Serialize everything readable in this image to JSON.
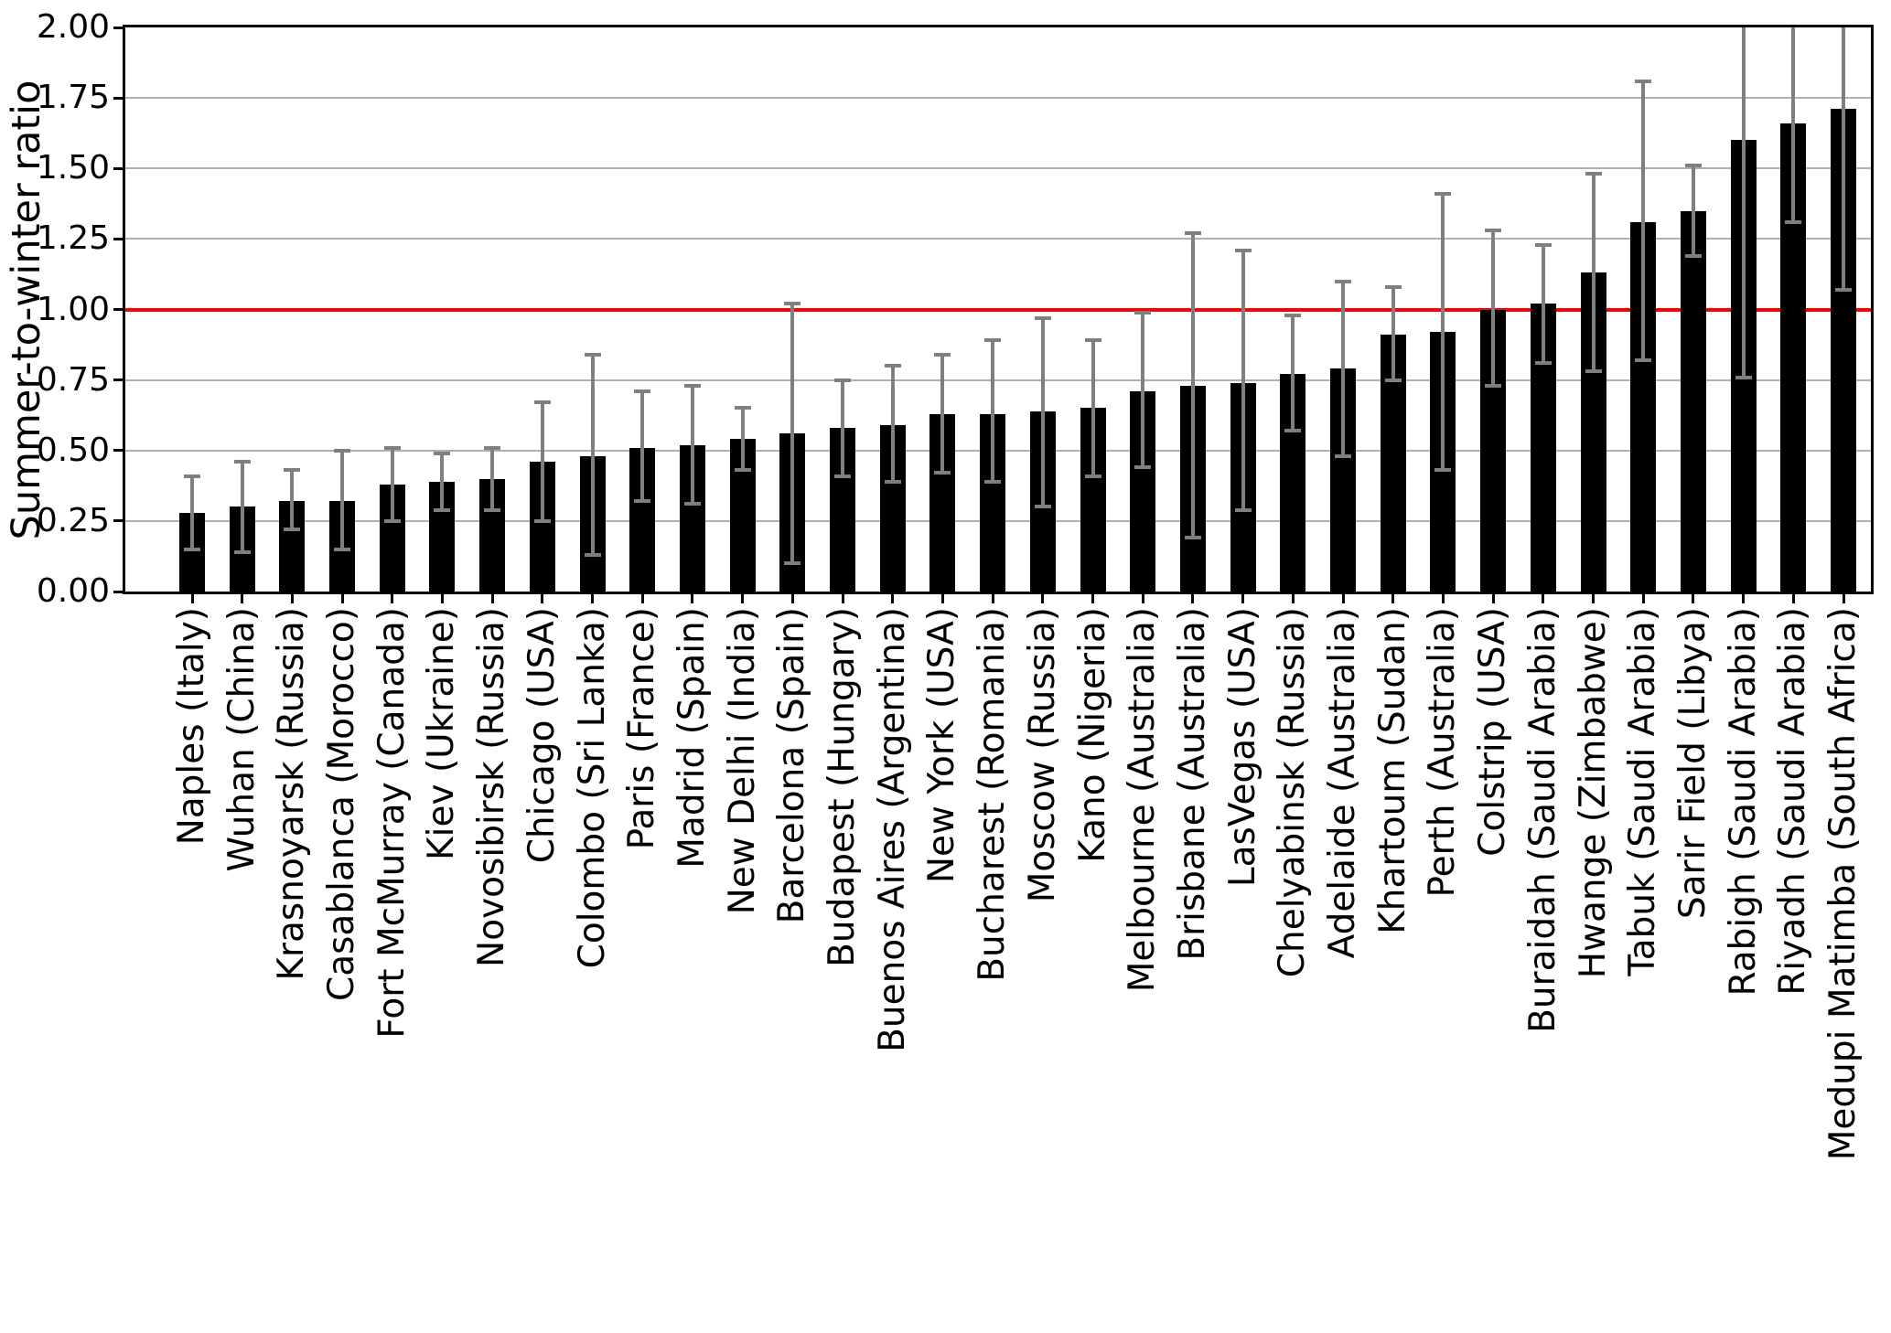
{
  "chart_data": {
    "type": "bar",
    "title": "",
    "xlabel": "",
    "ylabel": "Summer-to-winter ratio",
    "ylim": [
      0,
      2
    ],
    "yticks": [
      "0.00",
      "0.25",
      "0.50",
      "0.75",
      "1.00",
      "1.25",
      "1.50",
      "1.75",
      "2.00"
    ],
    "grid": "horizontal",
    "legend_position": "none",
    "reference_line": {
      "y": 1.0,
      "color": "#ff0000",
      "style": "solid"
    },
    "colors": {
      "bar": "#000000",
      "error_bar": "#7f7f7f",
      "reference_line": "#ff0000",
      "gridline": "#b0b0b0",
      "axis": "#000000",
      "background": "#ffffff"
    },
    "bars": [
      {
        "label": "Naples (Italy)",
        "value": 0.28,
        "err_lo": 0.15,
        "err_hi": 0.41,
        "err_hi_clipped": false
      },
      {
        "label": "Wuhan (China)",
        "value": 0.3,
        "err_lo": 0.14,
        "err_hi": 0.46,
        "err_hi_clipped": false
      },
      {
        "label": "Krasnoyarsk (Russia)",
        "value": 0.32,
        "err_lo": 0.22,
        "err_hi": 0.43,
        "err_hi_clipped": false
      },
      {
        "label": "Casablanca (Morocco)",
        "value": 0.32,
        "err_lo": 0.15,
        "err_hi": 0.5,
        "err_hi_clipped": false
      },
      {
        "label": "Fort McMurray (Canada)",
        "value": 0.38,
        "err_lo": 0.25,
        "err_hi": 0.51,
        "err_hi_clipped": false
      },
      {
        "label": "Kiev (Ukraine)",
        "value": 0.39,
        "err_lo": 0.29,
        "err_hi": 0.49,
        "err_hi_clipped": false
      },
      {
        "label": "Novosibirsk (Russia)",
        "value": 0.4,
        "err_lo": 0.29,
        "err_hi": 0.51,
        "err_hi_clipped": false
      },
      {
        "label": "Chicago (USA)",
        "value": 0.46,
        "err_lo": 0.25,
        "err_hi": 0.67,
        "err_hi_clipped": false
      },
      {
        "label": "Colombo (Sri Lanka)",
        "value": 0.48,
        "err_lo": 0.13,
        "err_hi": 0.84,
        "err_hi_clipped": false
      },
      {
        "label": "Paris (France)",
        "value": 0.51,
        "err_lo": 0.32,
        "err_hi": 0.71,
        "err_hi_clipped": false
      },
      {
        "label": "Madrid (Spain)",
        "value": 0.52,
        "err_lo": 0.31,
        "err_hi": 0.73,
        "err_hi_clipped": false
      },
      {
        "label": "New Delhi (India)",
        "value": 0.54,
        "err_lo": 0.43,
        "err_hi": 0.65,
        "err_hi_clipped": false
      },
      {
        "label": "Barcelona (Spain)",
        "value": 0.56,
        "err_lo": 0.1,
        "err_hi": 1.02,
        "err_hi_clipped": false
      },
      {
        "label": "Budapest (Hungary)",
        "value": 0.58,
        "err_lo": 0.41,
        "err_hi": 0.75,
        "err_hi_clipped": false
      },
      {
        "label": "Buenos Aires (Argentina)",
        "value": 0.59,
        "err_lo": 0.39,
        "err_hi": 0.8,
        "err_hi_clipped": false
      },
      {
        "label": "New York (USA)",
        "value": 0.63,
        "err_lo": 0.42,
        "err_hi": 0.84,
        "err_hi_clipped": false
      },
      {
        "label": "Bucharest (Romania)",
        "value": 0.63,
        "err_lo": 0.39,
        "err_hi": 0.89,
        "err_hi_clipped": false
      },
      {
        "label": "Moscow (Russia)",
        "value": 0.64,
        "err_lo": 0.3,
        "err_hi": 0.97,
        "err_hi_clipped": false
      },
      {
        "label": "Kano (Nigeria)",
        "value": 0.65,
        "err_lo": 0.41,
        "err_hi": 0.89,
        "err_hi_clipped": false
      },
      {
        "label": "Melbourne (Australia)",
        "value": 0.71,
        "err_lo": 0.44,
        "err_hi": 0.99,
        "err_hi_clipped": false
      },
      {
        "label": "Brisbane (Australia)",
        "value": 0.73,
        "err_lo": 0.19,
        "err_hi": 1.27,
        "err_hi_clipped": false
      },
      {
        "label": "LasVegas (USA)",
        "value": 0.74,
        "err_lo": 0.29,
        "err_hi": 1.21,
        "err_hi_clipped": false
      },
      {
        "label": "Chelyabinsk (Russia)",
        "value": 0.77,
        "err_lo": 0.57,
        "err_hi": 0.98,
        "err_hi_clipped": false
      },
      {
        "label": "Adelaide (Australia)",
        "value": 0.79,
        "err_lo": 0.48,
        "err_hi": 1.1,
        "err_hi_clipped": false
      },
      {
        "label": "Khartoum (Sudan)",
        "value": 0.91,
        "err_lo": 0.75,
        "err_hi": 1.08,
        "err_hi_clipped": false
      },
      {
        "label": "Perth (Australia)",
        "value": 0.92,
        "err_lo": 0.43,
        "err_hi": 1.41,
        "err_hi_clipped": false
      },
      {
        "label": "Colstrip (USA)",
        "value": 1.0,
        "err_lo": 0.73,
        "err_hi": 1.28,
        "err_hi_clipped": false
      },
      {
        "label": "Buraidah (Saudi Arabia)",
        "value": 1.02,
        "err_lo": 0.81,
        "err_hi": 1.23,
        "err_hi_clipped": false
      },
      {
        "label": "Hwange (Zimbabwe)",
        "value": 1.13,
        "err_lo": 0.78,
        "err_hi": 1.48,
        "err_hi_clipped": false
      },
      {
        "label": "Tabuk (Saudi Arabia)",
        "value": 1.31,
        "err_lo": 0.82,
        "err_hi": 1.81,
        "err_hi_clipped": false
      },
      {
        "label": "Sarir Field (Libya)",
        "value": 1.35,
        "err_lo": 1.19,
        "err_hi": 1.51,
        "err_hi_clipped": false
      },
      {
        "label": "Rabigh (Saudi Arabia)",
        "value": 1.6,
        "err_lo": 0.76,
        "err_hi": 2.0,
        "err_hi_clipped": true
      },
      {
        "label": "Riyadh (Saudi Arabia)",
        "value": 1.66,
        "err_lo": 1.31,
        "err_hi": 2.0,
        "err_hi_clipped": true
      },
      {
        "label": "Medupi Matimba (South Africa)",
        "value": 1.71,
        "err_lo": 1.07,
        "err_hi": 2.0,
        "err_hi_clipped": true
      }
    ]
  }
}
